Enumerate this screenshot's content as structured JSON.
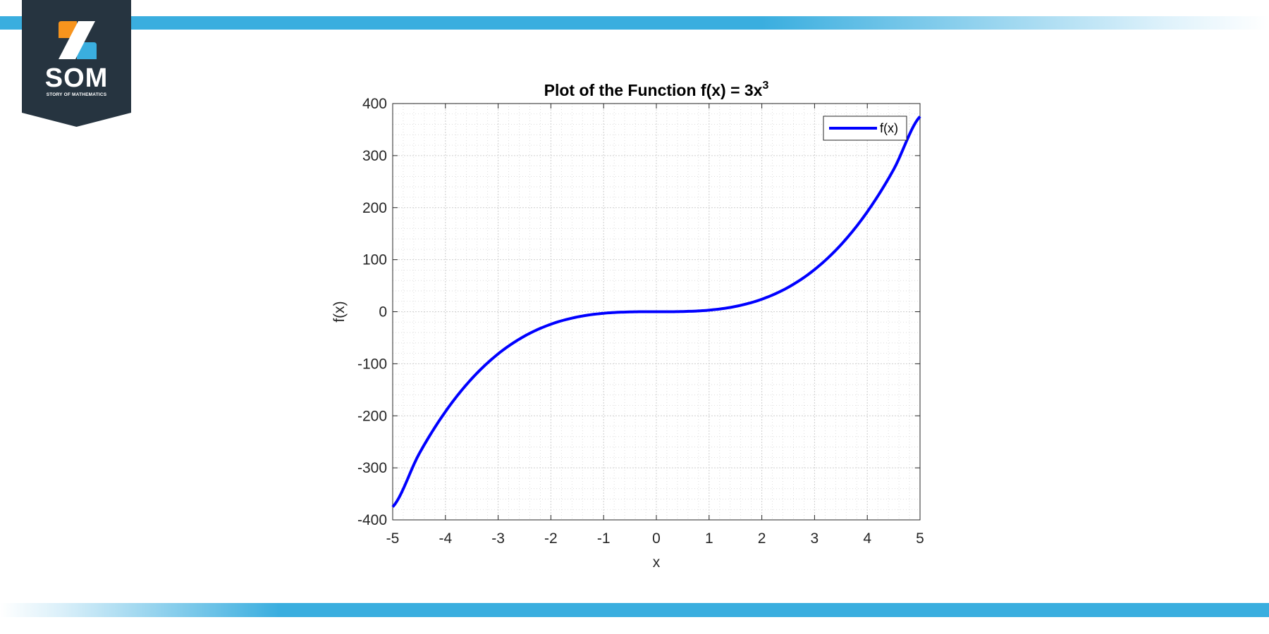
{
  "brand": {
    "name": "SOM",
    "tagline": "STORY OF MATHEMATICS",
    "colors": {
      "dark": "#263440",
      "orange": "#f7941d",
      "blue": "#3aaedf"
    }
  },
  "chart_data": {
    "type": "line",
    "title": "Plot of the Function f(x) = 3x",
    "title_superscript": "3",
    "xlabel": "x",
    "ylabel": "f(x)",
    "xlim": [
      -5,
      5
    ],
    "ylim": [
      -400,
      400
    ],
    "x_ticks": [
      -5,
      -4,
      -3,
      -2,
      -1,
      0,
      1,
      2,
      3,
      4,
      5
    ],
    "y_ticks": [
      -400,
      -300,
      -200,
      -100,
      0,
      100,
      200,
      300,
      400
    ],
    "x_tick_labels": [
      "-5",
      "-4",
      "-3",
      "-2",
      "-1",
      "0",
      "1",
      "2",
      "3",
      "4",
      "5"
    ],
    "y_tick_labels": [
      "-400",
      "-300",
      "-200",
      "-100",
      "0",
      "100",
      "200",
      "300",
      "400"
    ],
    "grid": true,
    "minor_grid": true,
    "legend_position": "top-right",
    "series": [
      {
        "name": "f(x)",
        "color": "#0000ff",
        "x": [
          -5,
          -4.5,
          -4,
          -3.5,
          -3,
          -2.5,
          -2,
          -1.5,
          -1,
          -0.5,
          0,
          0.5,
          1,
          1.5,
          2,
          2.5,
          3,
          3.5,
          4,
          4.5,
          5
        ],
        "y": [
          -375,
          -273.375,
          -192,
          -128.625,
          -81,
          -46.875,
          -24,
          -10.125,
          -3,
          -0.375,
          0,
          0.375,
          3,
          10.125,
          24,
          46.875,
          81,
          128.625,
          192,
          273.375,
          375
        ]
      }
    ]
  }
}
